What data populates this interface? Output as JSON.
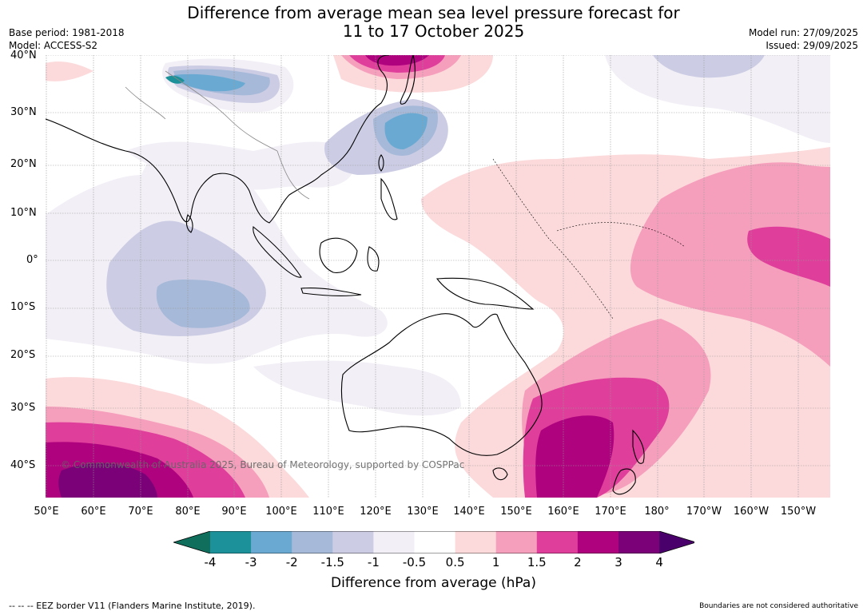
{
  "title_line1": "Difference from average mean sea level pressure forecast for",
  "title_line2": "11 to 17 October 2025",
  "base_period": "Base period: 1981-2018",
  "model": "Model: ACCESS-S2",
  "model_run": "Model run: 27/09/2025",
  "issued": "Issued: 29/09/2025",
  "lat_labels": [
    "40°N",
    "30°N",
    "20°N",
    "10°N",
    "0°",
    "10°S",
    "20°S",
    "30°S",
    "40°S"
  ],
  "lon_labels": [
    "50°E",
    "60°E",
    "70°E",
    "80°E",
    "90°E",
    "100°E",
    "110°E",
    "120°E",
    "130°E",
    "140°E",
    "150°E",
    "160°E",
    "170°E",
    "180°",
    "170°W",
    "160°W",
    "150°W"
  ],
  "copyright": "© Commonwealth of Australia 2025, Bureau of Meteorology, supported by COSPPac",
  "colorbar": {
    "ticks": [
      "-4",
      "-3",
      "-2",
      "-1.5",
      "-1",
      "-0.5",
      "0.5",
      "1",
      "1.5",
      "2",
      "3",
      "4"
    ],
    "label": "Difference from average (hPa)",
    "colors": [
      "#0f6e5c",
      "#1c9199",
      "#6aaad2",
      "#a6b9d8",
      "#cccde4",
      "#f2eff6",
      "#ffffff",
      "#fcdadb",
      "#f69fbd",
      "#df3e9b",
      "#ae027e",
      "#7a0177",
      "#4a006a"
    ]
  },
  "footer_left": "--  --  -- EEZ border V11 (Flanders Marine Institute, 2019).",
  "footer_right": "Boundaries are not considered authoritative"
}
